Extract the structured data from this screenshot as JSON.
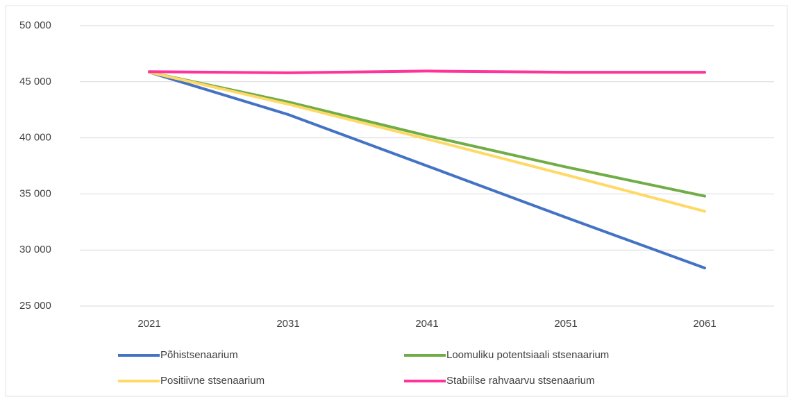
{
  "chart_data": {
    "type": "line",
    "categories": [
      "2021",
      "2031",
      "2041",
      "2051",
      "2061"
    ],
    "series": [
      {
        "name": "Põhistsenaarium",
        "color": "#4472c4",
        "values": [
          45850,
          42080,
          37500,
          32900,
          28400
        ]
      },
      {
        "name": "Loomuliku potentsiaali stsenaarium",
        "color": "#70ad47",
        "values": [
          45850,
          43200,
          40200,
          37400,
          34800
        ]
      },
      {
        "name": "Positiivne stsenaarium",
        "color": "#ffd966",
        "values": [
          45850,
          43000,
          39900,
          36700,
          33450
        ]
      },
      {
        "name": "Stabiilse rahvaarvu stsenaarium",
        "color": "#ff3399",
        "values": [
          45900,
          45800,
          45950,
          45850,
          45850
        ]
      }
    ],
    "ylim": [
      25000,
      50000
    ],
    "yticks": [
      {
        "value": 25000,
        "label": "25 000"
      },
      {
        "value": 30000,
        "label": "30 000"
      },
      {
        "value": 35000,
        "label": "35 000"
      },
      {
        "value": 40000,
        "label": "40 000"
      },
      {
        "value": 45000,
        "label": "45 000"
      },
      {
        "value": 50000,
        "label": "50 000"
      }
    ],
    "grid": true,
    "legend": "bottom"
  }
}
